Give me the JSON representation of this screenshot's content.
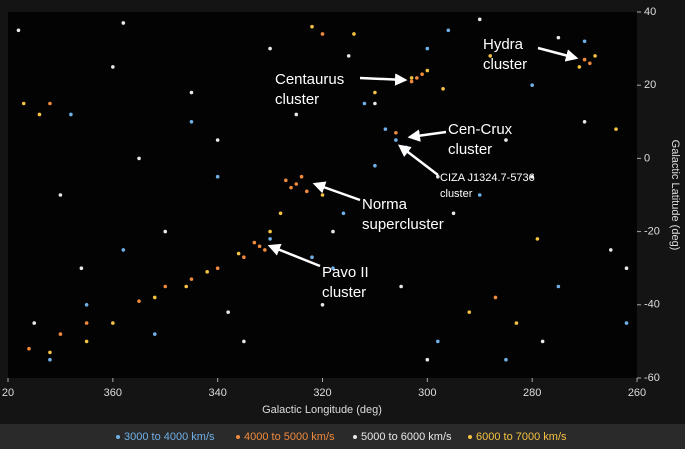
{
  "chart_data": {
    "type": "scatter",
    "xlabel": "Galactic Longitude (deg)",
    "ylabel": "Galactic Latitude (deg)",
    "xlim": [
      380,
      260
    ],
    "xticks": [
      {
        "value": 380,
        "label": "20"
      },
      360,
      340,
      320,
      300,
      280,
      260
    ],
    "ylim": [
      -60,
      40
    ],
    "yticks": [
      40,
      20,
      0,
      -20,
      -40,
      -60
    ],
    "legend": "bottom",
    "series": [
      {
        "name": "3000 to 4000 km/s",
        "color": "#6fb0e8",
        "x": [
          306,
          308,
          304,
          310,
          300,
          312,
          296,
          318,
          340,
          352,
          365,
          372,
          290,
          280,
          270,
          275,
          345,
          330,
          322,
          316,
          358,
          368,
          262,
          285,
          298
        ],
        "y": [
          5,
          8,
          3,
          -2,
          30,
          15,
          35,
          -30,
          -5,
          -48,
          -40,
          -55,
          -10,
          20,
          32,
          -35,
          10,
          -22,
          -27,
          -15,
          -25,
          12,
          -45,
          -55,
          -50
        ]
      },
      {
        "name": "4000 to 5000 km/s",
        "color": "#f08a3c",
        "x": [
          325,
          324,
          326,
          323,
          327,
          332,
          333,
          331,
          335,
          345,
          355,
          365,
          370,
          376,
          302,
          301,
          303,
          269,
          270,
          320,
          340,
          350,
          306,
          372,
          287
        ],
        "y": [
          -7,
          -5,
          -8,
          -9,
          -6,
          -24,
          -23,
          -25,
          -27,
          -33,
          -39,
          -45,
          -48,
          -52,
          22,
          23,
          21,
          26,
          27,
          34,
          -30,
          -35,
          7,
          15,
          -38
        ]
      },
      {
        "name": "5000 to 6000 km/s",
        "color": "#e8e8e8",
        "x": [
          378,
          370,
          360,
          350,
          340,
          330,
          320,
          310,
          300,
          290,
          280,
          270,
          262,
          375,
          355,
          335,
          315,
          295,
          275,
          265,
          345,
          325,
          305,
          285,
          366,
          358,
          338,
          318,
          298,
          278
        ],
        "y": [
          35,
          -10,
          25,
          -20,
          5,
          30,
          -40,
          15,
          -55,
          38,
          -5,
          10,
          -30,
          -45,
          0,
          -50,
          28,
          -15,
          33,
          -25,
          18,
          12,
          -35,
          5,
          -30,
          37,
          -42,
          -20,
          -5,
          -50
        ]
      },
      {
        "name": "6000 to 7000 km/s",
        "color": "#f5c242",
        "x": [
          377,
          374,
          365,
          352,
          342,
          336,
          328,
          322,
          314,
          303,
          300,
          297,
          288,
          279,
          271,
          268,
          264,
          320,
          346,
          360,
          372,
          310,
          292,
          283,
          330
        ],
        "y": [
          15,
          12,
          -50,
          -38,
          -31,
          -26,
          -15,
          36,
          34,
          22,
          24,
          19,
          28,
          -22,
          25,
          28,
          8,
          -10,
          -35,
          -45,
          -53,
          18,
          -42,
          -45,
          -20
        ]
      }
    ],
    "annotations": [
      {
        "lines": [
          "Hydra",
          "cluster"
        ]
      },
      {
        "lines": [
          "Centaurus",
          "cluster"
        ]
      },
      {
        "lines": [
          "Cen-Crux",
          "cluster"
        ]
      },
      {
        "lines": [
          "CIZA J1324.7-5736",
          "cluster"
        ]
      },
      {
        "lines": [
          "Norma",
          "supercluster"
        ]
      },
      {
        "lines": [
          "Pavo II",
          "cluster"
        ]
      }
    ]
  }
}
